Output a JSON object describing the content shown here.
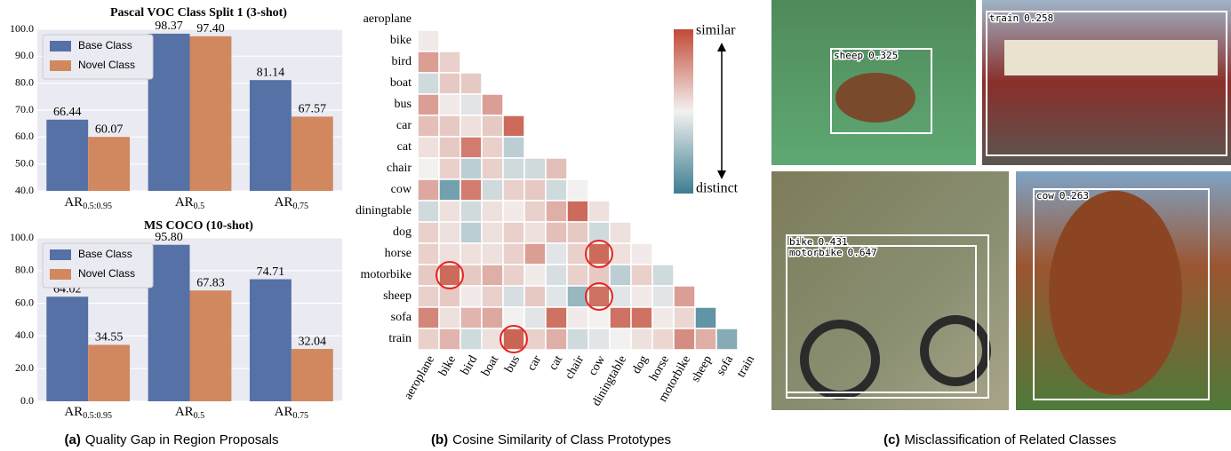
{
  "chart_data": [
    {
      "type": "bar",
      "title": "Pascal VOC Class Split 1 (3-shot)",
      "categories": [
        "AR",
        "AR",
        "AR"
      ],
      "category_subscripts": [
        "0.5:0.95",
        "0.5",
        "0.75"
      ],
      "series": [
        {
          "name": "Base Class",
          "color": "#5571a5",
          "values": [
            66.44,
            98.37,
            81.14
          ],
          "value_labels": [
            "66.44",
            "98.37",
            "81.14"
          ]
        },
        {
          "name": "Novel Class",
          "color": "#d1885f",
          "values": [
            60.07,
            97.4,
            67.57
          ],
          "value_labels": [
            "60.07",
            "97.40",
            "67.57"
          ]
        }
      ],
      "ylim": [
        40,
        100
      ],
      "yticks": [
        {
          "value": 40,
          "label": "40.0"
        },
        {
          "value": 50,
          "label": "50.0"
        },
        {
          "value": 60,
          "label": "60.0"
        },
        {
          "value": 70,
          "label": "70.0"
        },
        {
          "value": 80,
          "label": "80.0"
        },
        {
          "value": 90,
          "label": "90.0"
        },
        {
          "value": 100,
          "label": "100.0"
        }
      ],
      "grid": true,
      "legend": "upper-left"
    },
    {
      "type": "bar",
      "title": "MS COCO (10-shot)",
      "categories": [
        "AR",
        "AR",
        "AR"
      ],
      "category_subscripts": [
        "0.5:0.95",
        "0.5",
        "0.75"
      ],
      "series": [
        {
          "name": "Base Class",
          "color": "#5571a5",
          "values": [
            64.02,
            95.8,
            74.71
          ],
          "value_labels": [
            "64.02",
            "95.80",
            "74.71"
          ]
        },
        {
          "name": "Novel Class",
          "color": "#d1885f",
          "values": [
            34.55,
            67.83,
            32.04
          ],
          "value_labels": [
            "34.55",
            "67.83",
            "32.04"
          ]
        }
      ],
      "ylim": [
        0,
        100
      ],
      "yticks": [
        {
          "value": 0,
          "label": "0.0"
        },
        {
          "value": 20,
          "label": "20.0"
        },
        {
          "value": 40,
          "label": "40.0"
        },
        {
          "value": 60,
          "label": "60.0"
        },
        {
          "value": 80,
          "label": "80.0"
        },
        {
          "value": 100,
          "label": "100.0"
        }
      ],
      "grid": true,
      "legend": "upper-left"
    },
    {
      "type": "heatmap",
      "categories": [
        "aeroplane",
        "bike",
        "bird",
        "boat",
        "bus",
        "car",
        "cat",
        "chair",
        "cow",
        "diningtable",
        "dog",
        "horse",
        "motorbike",
        "sheep",
        "sofa",
        "train"
      ],
      "values": [
        [],
        [
          0.52
        ],
        [
          0.75,
          0.6
        ],
        [
          0.4,
          0.62,
          0.62
        ],
        [
          0.75,
          0.52,
          0.45,
          0.75
        ],
        [
          0.65,
          0.62,
          0.55,
          0.62,
          0.9
        ],
        [
          0.55,
          0.62,
          0.85,
          0.6,
          0.35
        ],
        [
          0.5,
          0.6,
          0.35,
          0.6,
          0.4,
          0.4,
          0.65
        ],
        [
          0.72,
          0.15,
          0.85,
          0.4,
          0.6,
          0.62,
          0.4,
          0.5
        ],
        [
          0.4,
          0.55,
          0.4,
          0.55,
          0.52,
          0.6,
          0.7,
          0.9,
          0.55
        ],
        [
          0.6,
          0.55,
          0.35,
          0.55,
          0.6,
          0.55,
          0.65,
          0.62,
          0.4,
          0.55
        ],
        [
          0.6,
          0.55,
          0.55,
          0.55,
          0.6,
          0.75,
          0.45,
          0.6,
          0.9,
          0.55,
          0.52
        ],
        [
          0.62,
          0.9,
          0.62,
          0.7,
          0.6,
          0.52,
          0.42,
          0.6,
          0.62,
          0.35,
          0.6,
          0.4
        ],
        [
          0.6,
          0.62,
          0.52,
          0.6,
          0.42,
          0.62,
          0.45,
          0.25,
          0.88,
          0.45,
          0.52,
          0.45,
          0.75
        ],
        [
          0.82,
          0.55,
          0.68,
          0.72,
          0.5,
          0.45,
          0.88,
          0.52,
          0.5,
          0.88,
          0.88,
          0.52,
          0.58,
          0.1
        ],
        [
          0.6,
          0.68,
          0.4,
          0.55,
          0.92,
          0.6,
          0.7,
          0.4,
          0.45,
          0.5,
          0.55,
          0.58,
          0.8,
          0.7,
          0.2
        ]
      ],
      "colormap": [
        "#3d7d91",
        "#f3f1f0",
        "#c24a37"
      ],
      "colorbar_labels": [
        "similar",
        "distinct"
      ],
      "highlights": [
        [
          12,
          1
        ],
        [
          11,
          8
        ],
        [
          13,
          8
        ],
        [
          15,
          4
        ]
      ]
    }
  ],
  "images": [
    {
      "detections": [
        {
          "label": "sheep",
          "score": 0.325
        }
      ]
    },
    {
      "detections": [
        {
          "label": "train",
          "score": 0.258
        }
      ]
    },
    {
      "detections": [
        {
          "label": "bike",
          "score": 0.431
        },
        {
          "label": "motorbike",
          "score": 0.647
        }
      ]
    },
    {
      "detections": [
        {
          "label": "cow",
          "score": 0.263
        }
      ]
    }
  ],
  "captions": [
    {
      "label": "(a)",
      "text": "Quality Gap in Region Proposals"
    },
    {
      "label": "(b)",
      "text": "Cosine Similarity of Class Prototypes"
    },
    {
      "label": "(c)",
      "text": "Misclassification of Related Classes"
    }
  ]
}
